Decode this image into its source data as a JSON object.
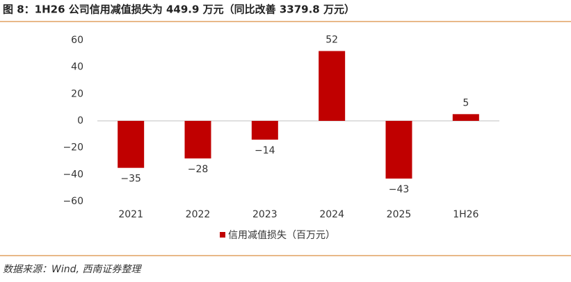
{
  "chart_data": {
    "type": "bar",
    "title": "图 8：1H26 公司信用减值损失为 449.9 万元（同比改善 3379.8 万元）",
    "source": "数据来源：Wind, 西南证券整理",
    "categories": [
      "2021",
      "2022",
      "2023",
      "2024",
      "2025",
      "1H26"
    ],
    "series": [
      {
        "name": "信用减值损失（百万元）",
        "color": "#c00000",
        "values": [
          -35,
          -28,
          -14,
          52,
          -43,
          5
        ],
        "value_labels": [
          "−35",
          "−28",
          "−14",
          "52",
          "−43",
          "5"
        ]
      }
    ],
    "ylim": [
      -60,
      60
    ],
    "yticks": [
      {
        "value": -60,
        "label": "−60"
      },
      {
        "value": -40,
        "label": "−40"
      },
      {
        "value": -20,
        "label": "−20"
      },
      0,
      20,
      40,
      60
    ],
    "legend": "bottom"
  }
}
